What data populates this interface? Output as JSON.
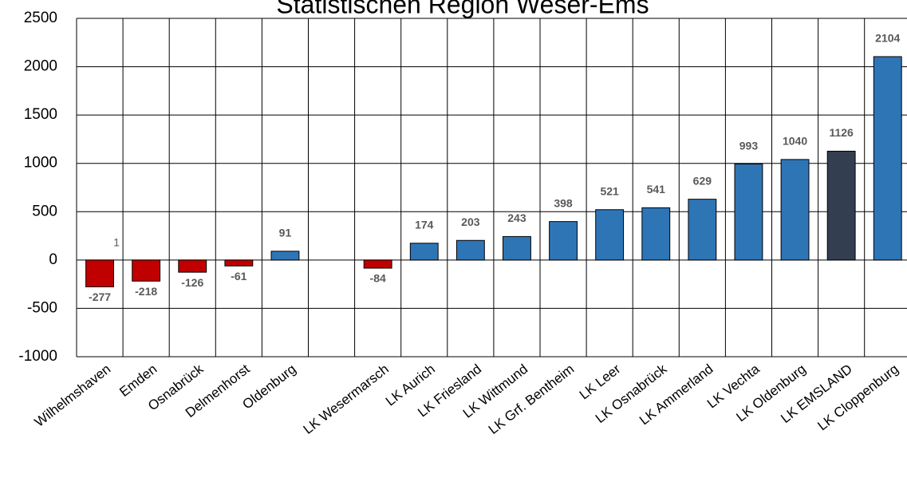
{
  "chart_data": {
    "type": "bar",
    "title": "Statistischen Region Weser-Ems",
    "categories": [
      "Wilhelmshaven",
      "Emden",
      "Osnabrück",
      "Delmenhorst",
      "Oldenburg",
      null,
      "LK Wesermarsch",
      "LK Aurich",
      "LK Friesland",
      "LK Wittmund",
      "LK Grf. Bentheim",
      "LK Leer",
      "LK Osnabrück",
      "LK Ammerland",
      "LK Vechta",
      "LK Oldenburg",
      "LK EMSLAND",
      "LK Cloppenburg"
    ],
    "values": [
      -277,
      -218,
      -126,
      -61,
      91,
      null,
      -84,
      174,
      203,
      243,
      398,
      521,
      541,
      629,
      993,
      1040,
      1126,
      2104
    ],
    "colors": [
      "#c00000",
      "#c00000",
      "#c00000",
      "#c00000",
      "#2e75b6",
      null,
      "#c00000",
      "#2e75b6",
      "#2e75b6",
      "#2e75b6",
      "#2e75b6",
      "#2e75b6",
      "#2e75b6",
      "#2e75b6",
      "#2e75b6",
      "#2e75b6",
      "#333f50",
      "#2e75b6"
    ],
    "annotations": [
      "1"
    ],
    "ylim": [
      -1000,
      2500
    ],
    "yticks": [
      -1000,
      -500,
      0,
      500,
      1000,
      1500,
      2000,
      2500
    ],
    "grid": true
  }
}
